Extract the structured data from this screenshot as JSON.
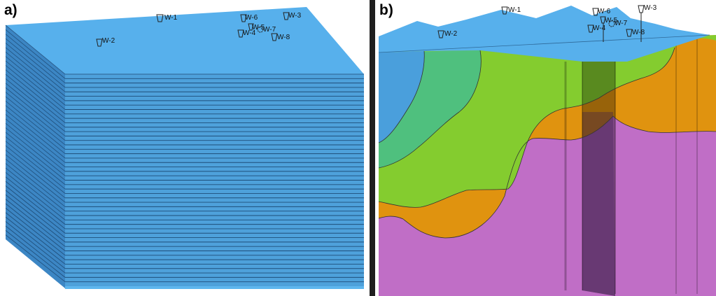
{
  "panel_a": {
    "label": "a)",
    "wells": [
      {
        "name": "W-1"
      },
      {
        "name": "W-2"
      },
      {
        "name": "W-3"
      },
      {
        "name": "W-4"
      },
      {
        "name": "W-5"
      },
      {
        "name": "W-6"
      },
      {
        "name": "W-7"
      },
      {
        "name": "W-8"
      }
    ]
  },
  "panel_b": {
    "label": "b)",
    "wells": [
      {
        "name": "W-1"
      },
      {
        "name": "W-2"
      },
      {
        "name": "W-3"
      },
      {
        "name": "W-4"
      },
      {
        "name": "W-5"
      },
      {
        "name": "W-6"
      },
      {
        "name": "W-7"
      },
      {
        "name": "W-8"
      }
    ]
  },
  "colors": {
    "layer_top": "#57b0ec",
    "layer_front": "#4ea1db",
    "layer_side": "#3c86c4",
    "unit_blue": "#4a9fdc",
    "unit_teal": "#4fc07e",
    "unit_green": "#84cc2f",
    "unit_orange": "#e0930f",
    "unit_magenta": "#c06ec6",
    "fault_dark": "#6b3a7a"
  }
}
